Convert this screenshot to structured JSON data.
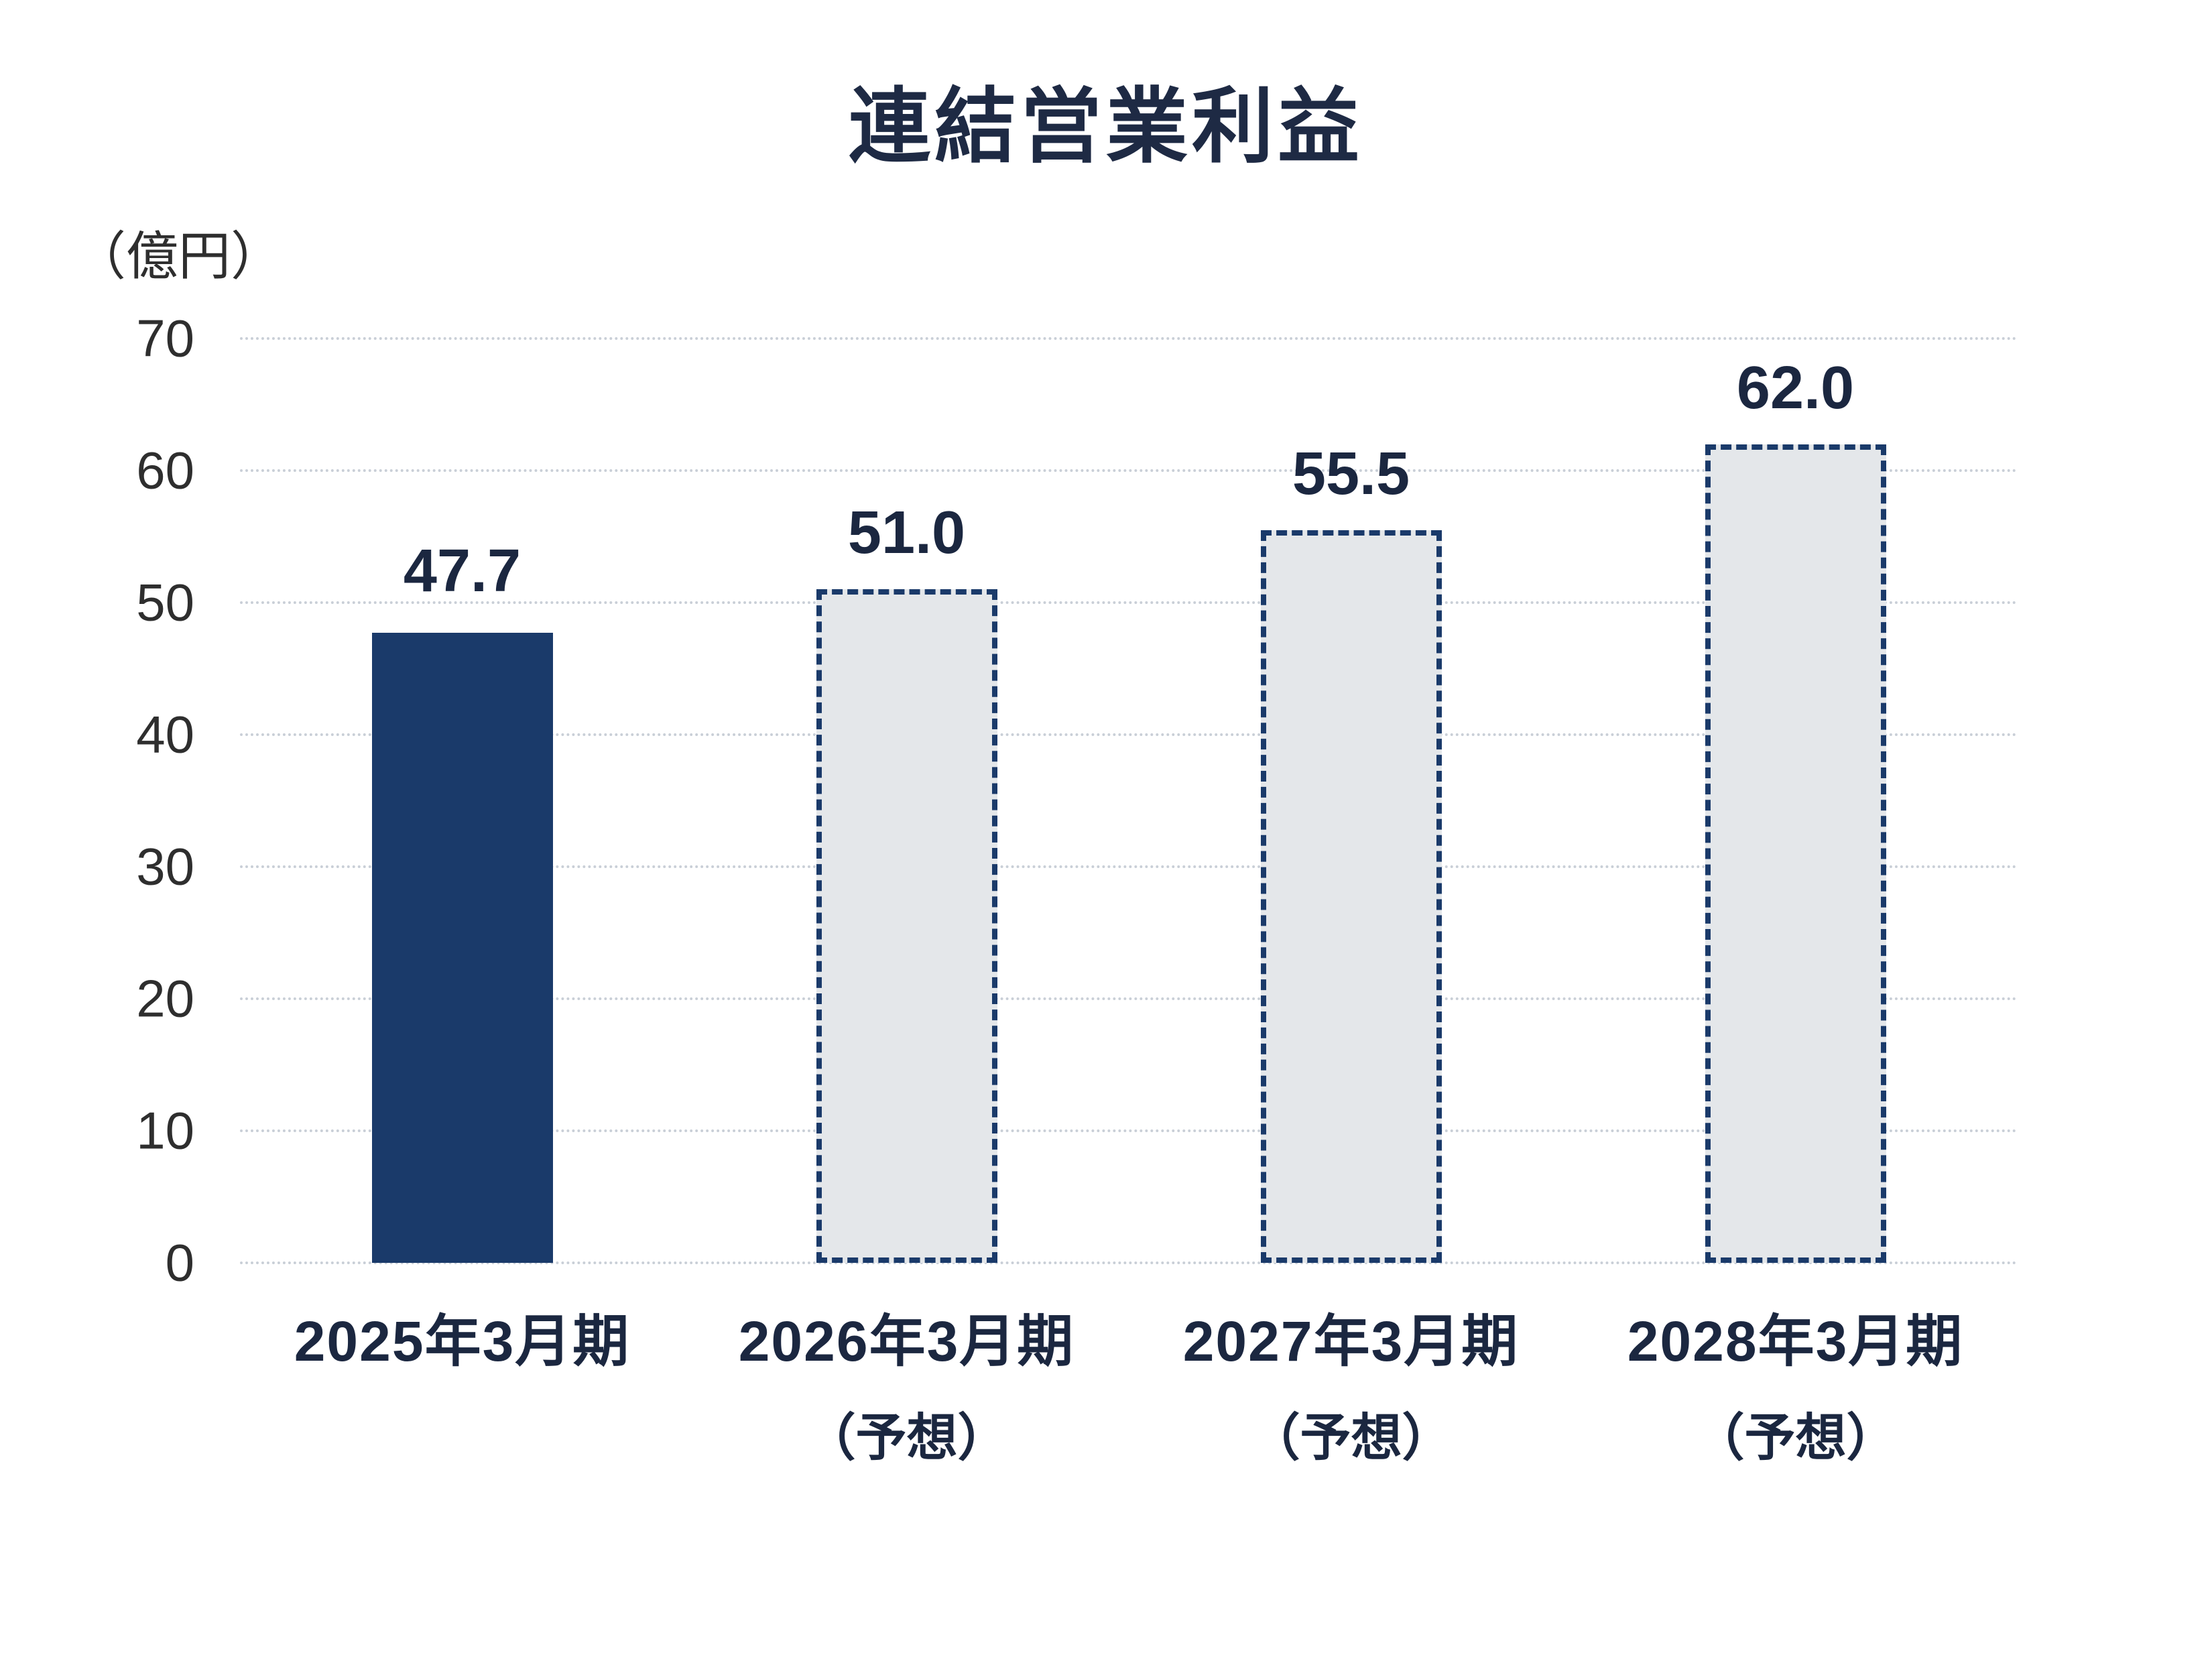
{
  "title": "連結営業利益",
  "unit_label": "（億円）",
  "chart_data": {
    "type": "bar",
    "title": "連結営業利益",
    "ylabel": "（億円）",
    "categories": [
      "2025年3月期",
      "2026年3月期",
      "2027年3月期",
      "2028年3月期"
    ],
    "sublabels": [
      "",
      "（予想）",
      "（予想）",
      "（予想）"
    ],
    "values": [
      47.7,
      51.0,
      55.5,
      62.0
    ],
    "value_labels": [
      "47.7",
      "51.0",
      "55.5",
      "62.0"
    ],
    "forecast": [
      false,
      true,
      true,
      true
    ],
    "ylim": [
      0,
      70
    ],
    "yticks": [
      0,
      10,
      20,
      30,
      40,
      50,
      60,
      70
    ],
    "grid": true,
    "legend": "none",
    "colors": {
      "actual_fill": "#1a3a6a",
      "forecast_fill": "#e4e7ea",
      "forecast_border": "#1a3a6a",
      "gridline": "#c9cfd7",
      "text": "#1b2740"
    }
  }
}
